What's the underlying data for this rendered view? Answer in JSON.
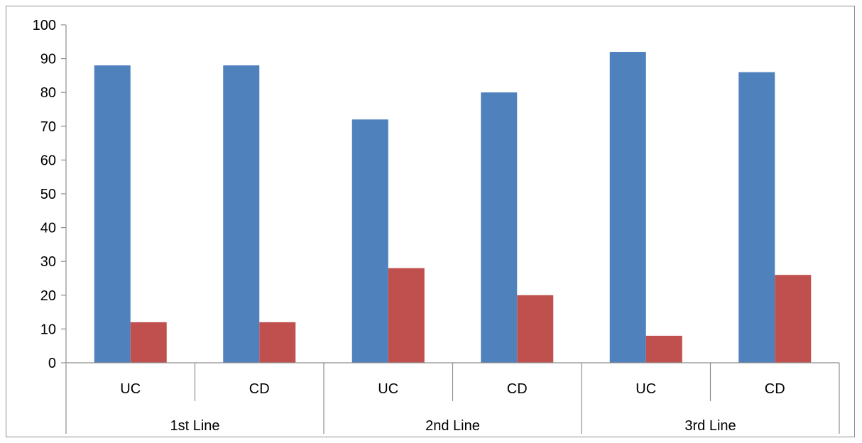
{
  "chart_data": {
    "type": "bar",
    "groups": [
      "1st Line",
      "2nd Line",
      "3rd Line"
    ],
    "subcategories": [
      "UC",
      "CD"
    ],
    "categories": [
      "UC",
      "CD",
      "UC",
      "CD",
      "UC",
      "CD"
    ],
    "series": [
      {
        "values": [
          88,
          88,
          72,
          80,
          92,
          86
        ],
        "color": "#4f81bd"
      },
      {
        "values": [
          12,
          12,
          28,
          20,
          8,
          26
        ],
        "color": "#c0504d"
      }
    ],
    "ylim": [
      0,
      100
    ],
    "yticks": [
      0,
      10,
      20,
      30,
      40,
      50,
      60,
      70,
      80,
      90,
      100
    ],
    "grid": false,
    "legend": "none",
    "axis_color": "#8e8e8e"
  }
}
